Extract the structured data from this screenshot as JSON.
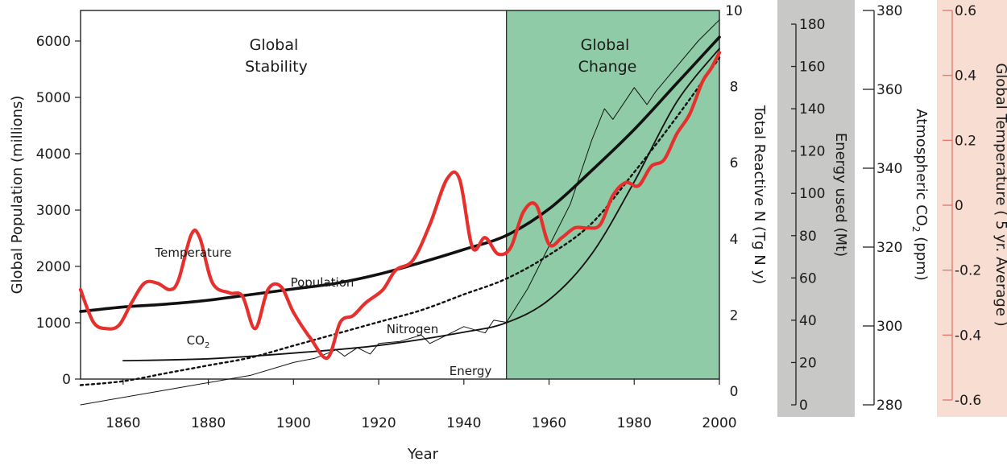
{
  "chart_data": {
    "type": "line",
    "xlabel": "Year",
    "x_ticks": [
      1860,
      1880,
      1900,
      1920,
      1940,
      1960,
      1980,
      2000
    ],
    "xlim": [
      1850,
      2000
    ],
    "period_labels": [
      {
        "id": "stability",
        "lines": [
          "Global",
          "Stability"
        ]
      },
      {
        "id": "change",
        "lines": [
          "Global",
          "Change"
        ]
      }
    ],
    "shaded_region": {
      "x_start": 1950,
      "x_end": 2000,
      "color": "#8ecba6"
    },
    "axes": {
      "population": {
        "label": "Global Population (millions)",
        "ylim": [
          0,
          6500
        ],
        "ticks": [
          0,
          1000,
          2000,
          3000,
          4000,
          5000,
          6000
        ]
      },
      "nitrogen": {
        "label": "Total Reactive N (Tg N y)",
        "ylim": [
          0,
          10
        ],
        "ticks": [
          0,
          2,
          4,
          6,
          8,
          10
        ]
      },
      "energy": {
        "label": "Energy used (Mt)",
        "ylim": [
          0,
          180
        ],
        "ticks": [
          0,
          20,
          40,
          60,
          80,
          100,
          120,
          140,
          160,
          180
        ],
        "band_color": "#c8c8c6"
      },
      "co2": {
        "label_main": "Atmospheric CO",
        "label_sub": "2",
        "label_unit": " (ppm)",
        "ylim": [
          280,
          380
        ],
        "ticks": [
          280,
          300,
          320,
          340,
          360,
          380
        ]
      },
      "temperature": {
        "label": "Global Temperature ( 5 yr. Average )",
        "ylim": [
          -0.6,
          0.6
        ],
        "ticks": [
          "-0.6",
          "-0.4",
          "-0.2",
          "0",
          "0.2",
          "0.4",
          "0.6"
        ],
        "tick_values": [
          -0.6,
          -0.4,
          -0.2,
          0,
          0.2,
          0.4,
          0.6
        ],
        "band_color": "#f8ddd2",
        "axis_color": "#e27d72"
      }
    },
    "series": [
      {
        "name": "Population",
        "axis": "population",
        "color": "#111111",
        "x": [
          1850,
          1860,
          1870,
          1880,
          1890,
          1900,
          1910,
          1920,
          1930,
          1940,
          1950,
          1960,
          1970,
          1980,
          1990,
          2000
        ],
        "values": [
          1200,
          1280,
          1330,
          1400,
          1500,
          1600,
          1700,
          1860,
          2070,
          2300,
          2550,
          3020,
          3700,
          4430,
          5250,
          6070
        ]
      },
      {
        "name": "CO2",
        "label_main": "CO",
        "label_sub": "2",
        "axis": "co2",
        "color": "#111111",
        "x": [
          1850,
          1860,
          1870,
          1880,
          1890,
          1900,
          1910,
          1920,
          1930,
          1940,
          1950,
          1960,
          1970,
          1980,
          1990,
          2000
        ],
        "values": [
          285,
          286,
          288,
          290,
          292,
          295,
          298,
          301,
          304,
          308,
          312,
          318,
          326,
          339,
          353,
          368
        ]
      },
      {
        "name": "Nitrogen",
        "axis": "nitrogen",
        "color": "#111111",
        "x": [
          1860,
          1880,
          1900,
          1920,
          1940,
          1950,
          1960,
          1970,
          1980,
          1990,
          2000
        ],
        "values": [
          0.8,
          0.85,
          1.0,
          1.2,
          1.55,
          1.8,
          2.4,
          3.6,
          5.5,
          7.6,
          9.0
        ]
      },
      {
        "name": "Energy",
        "axis": "energy",
        "color": "#111111",
        "x": [
          1850,
          1870,
          1890,
          1900,
          1905,
          1910,
          1912,
          1915,
          1918,
          1920,
          1925,
          1930,
          1932,
          1935,
          1940,
          1945,
          1947,
          1950,
          1955,
          1960,
          1965,
          1970,
          1973,
          1975,
          1980,
          1983,
          1985,
          1990,
          1995,
          2000
        ],
        "values": [
          0,
          7,
          14,
          20,
          22,
          26,
          23,
          27,
          24,
          29,
          30,
          33,
          29,
          32,
          37,
          34,
          40,
          39,
          55,
          75,
          95,
          125,
          140,
          135,
          150,
          142,
          148,
          160,
          172,
          182
        ]
      },
      {
        "name": "Temperature",
        "axis": "temperature",
        "color": "#e6302e",
        "x": [
          1850,
          1853,
          1856,
          1859,
          1862,
          1865,
          1868,
          1871,
          1873,
          1876,
          1878,
          1881,
          1885,
          1888,
          1891,
          1894,
          1897,
          1900,
          1904,
          1908,
          1911,
          1914,
          1917,
          1921,
          1924,
          1928,
          1932,
          1936,
          1939,
          1942,
          1945,
          1948,
          1951,
          1954,
          1957,
          1960,
          1963,
          1966,
          1969,
          1972,
          1975,
          1978,
          1981,
          1984,
          1987,
          1990,
          1993,
          1996,
          1998,
          2000
        ],
        "values": [
          -0.26,
          -0.36,
          -0.38,
          -0.37,
          -0.3,
          -0.24,
          -0.24,
          -0.26,
          -0.23,
          -0.09,
          -0.1,
          -0.24,
          -0.27,
          -0.28,
          -0.38,
          -0.26,
          -0.25,
          -0.33,
          -0.41,
          -0.47,
          -0.36,
          -0.34,
          -0.3,
          -0.26,
          -0.2,
          -0.17,
          -0.06,
          0.08,
          0.08,
          -0.13,
          -0.1,
          -0.15,
          -0.13,
          -0.02,
          0.0,
          -0.12,
          -0.1,
          -0.07,
          -0.07,
          -0.06,
          0.03,
          0.07,
          0.06,
          0.12,
          0.14,
          0.22,
          0.28,
          0.38,
          0.42,
          0.47
        ]
      }
    ]
  }
}
